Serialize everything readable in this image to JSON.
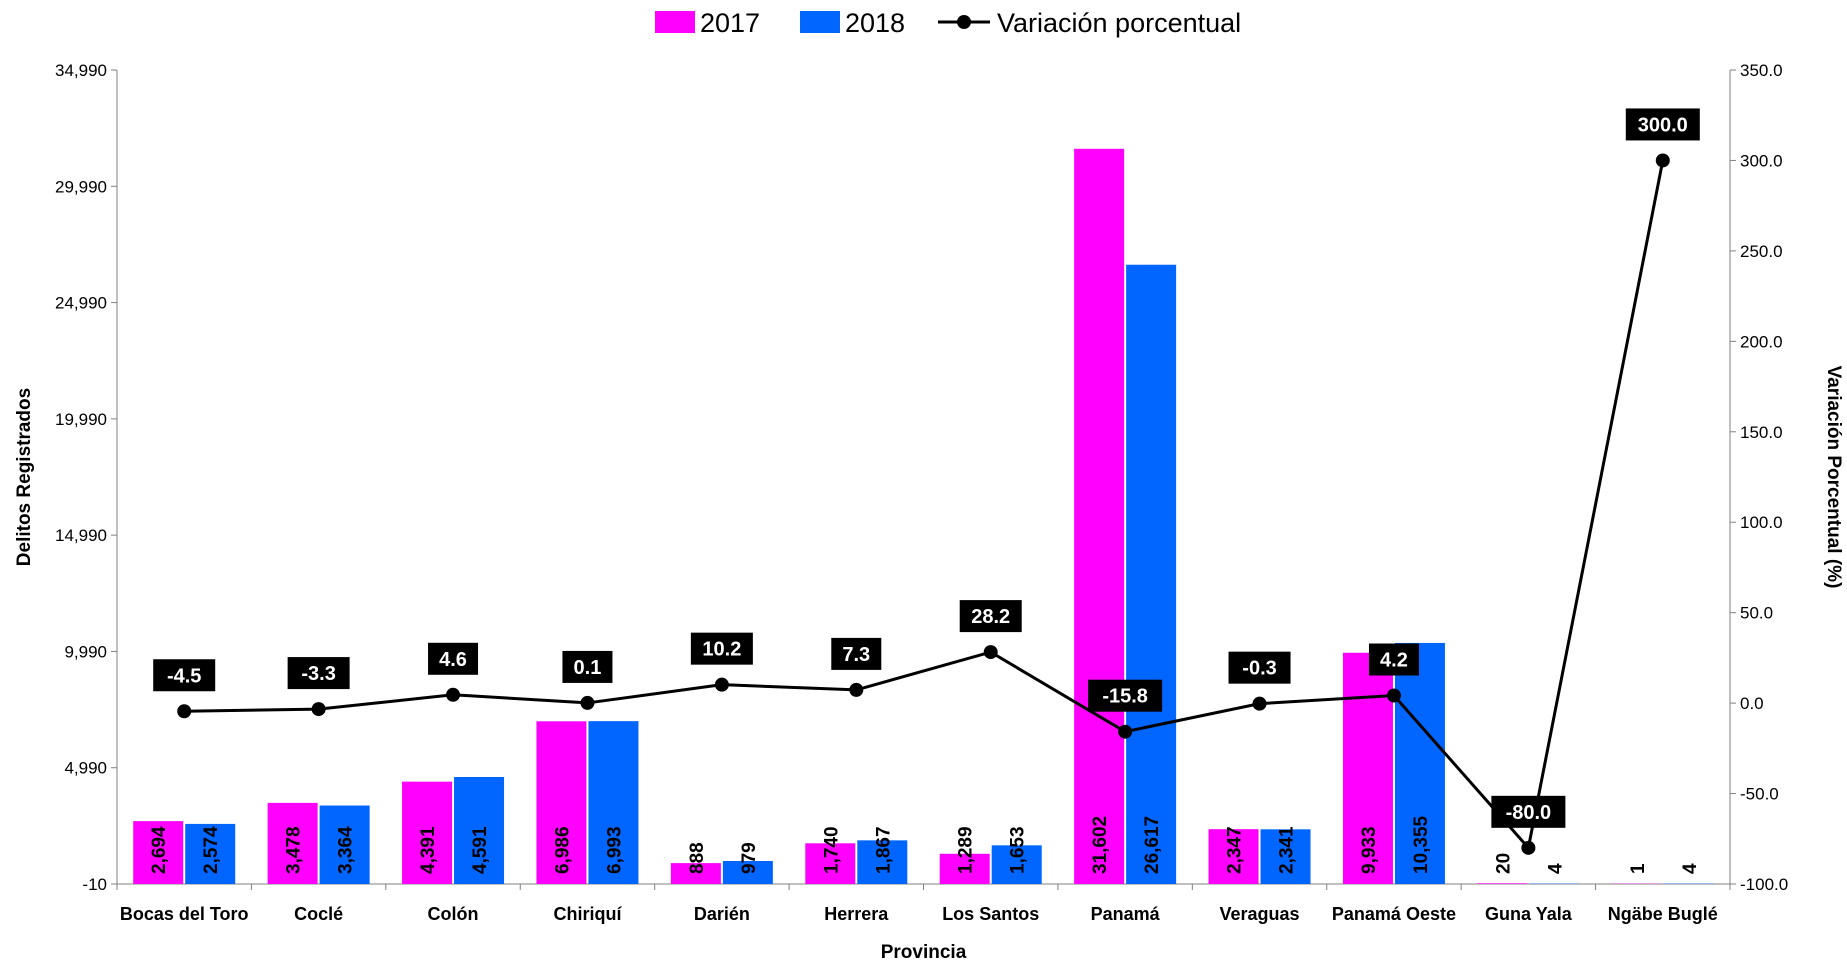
{
  "chart_data": {
    "type": "bar",
    "categories": [
      "Bocas del Toro",
      "Coclé",
      "Colón",
      "Chiriquí",
      "Darién",
      "Herrera",
      "Los Santos",
      "Panamá",
      "Veraguas",
      "Panamá Oeste",
      "Guna Yala",
      "Ngäbe Buglé"
    ],
    "series": [
      {
        "name": "2017",
        "type": "bar",
        "axis": "left",
        "color": "#ff00ff",
        "values": [
          2694,
          3478,
          4391,
          6986,
          888,
          1740,
          1289,
          31602,
          2347,
          9933,
          20,
          1
        ],
        "labels": [
          "2,694",
          "3,478",
          "4,391",
          "6,986",
          "888",
          "1,740",
          "1,289",
          "31,602",
          "2,347",
          "9,933",
          "20",
          "1"
        ]
      },
      {
        "name": "2018",
        "type": "bar",
        "axis": "left",
        "color": "#0066ff",
        "values": [
          2574,
          3364,
          4591,
          6993,
          979,
          1867,
          1653,
          26617,
          2341,
          10355,
          4,
          4
        ],
        "labels": [
          "2,574",
          "3,364",
          "4,591",
          "6,993",
          "979",
          "1,867",
          "1,653",
          "26,617",
          "2,341",
          "10,355",
          "4",
          "4"
        ]
      },
      {
        "name": "Variación porcentual",
        "type": "line",
        "axis": "right",
        "color": "#000000",
        "values": [
          -4.5,
          -3.3,
          4.6,
          0.1,
          10.2,
          7.3,
          28.2,
          -15.8,
          -0.3,
          4.2,
          -80.0,
          300.0
        ],
        "labels": [
          "-4.5",
          "-3.3",
          "4.6",
          "0.1",
          "10.2",
          "7.3",
          "28.2",
          "-15.8",
          "-0.3",
          "4.2",
          "-80.0",
          "300.0"
        ]
      }
    ],
    "xlabel": "Provincia",
    "ylabel": "Delitos Registrados",
    "y2label": "Variación Porcentual (%)",
    "ylim": [
      -10,
      34990
    ],
    "y2lim": [
      -100,
      350
    ],
    "yticks": [
      "-10",
      "4,990",
      "9,990",
      "14,990",
      "19,990",
      "24,990",
      "29,990",
      "34,990"
    ],
    "y2ticks": [
      "-100.0",
      "-50.0",
      "0.0",
      "50.0",
      "100.0",
      "150.0",
      "200.0",
      "250.0",
      "300.0",
      "350.0"
    ],
    "grid": false,
    "legend_position": "top"
  }
}
